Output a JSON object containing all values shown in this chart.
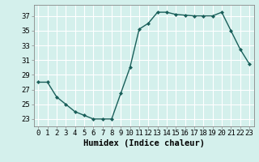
{
  "x": [
    0,
    1,
    2,
    3,
    4,
    5,
    6,
    7,
    8,
    9,
    10,
    11,
    12,
    13,
    14,
    15,
    16,
    17,
    18,
    19,
    20,
    21,
    22,
    23
  ],
  "y": [
    28,
    28,
    26,
    25,
    24,
    23.5,
    23,
    23,
    23,
    26.5,
    30,
    35.2,
    36,
    37.5,
    37.5,
    37.2,
    37.1,
    37,
    37,
    37,
    37.5,
    35,
    32.5,
    30.5
  ],
  "line_color": "#1a5f5a",
  "marker": "D",
  "marker_size": 2.0,
  "bg_color": "#d4f0ec",
  "grid_color": "#ffffff",
  "xlabel": "Humidex (Indice chaleur)",
  "ylim": [
    22,
    38.5
  ],
  "xlim": [
    -0.5,
    23.5
  ],
  "yticks": [
    23,
    25,
    27,
    29,
    31,
    33,
    35,
    37
  ],
  "xticks": [
    0,
    1,
    2,
    3,
    4,
    5,
    6,
    7,
    8,
    9,
    10,
    11,
    12,
    13,
    14,
    15,
    16,
    17,
    18,
    19,
    20,
    21,
    22,
    23
  ],
  "xtick_labels": [
    "0",
    "1",
    "2",
    "3",
    "4",
    "5",
    "6",
    "7",
    "8",
    "9",
    "10",
    "11",
    "12",
    "13",
    "14",
    "15",
    "16",
    "17",
    "18",
    "19",
    "20",
    "21",
    "22",
    "23"
  ],
  "tick_fontsize": 6.5,
  "xlabel_fontsize": 7.5,
  "line_width": 1.0
}
